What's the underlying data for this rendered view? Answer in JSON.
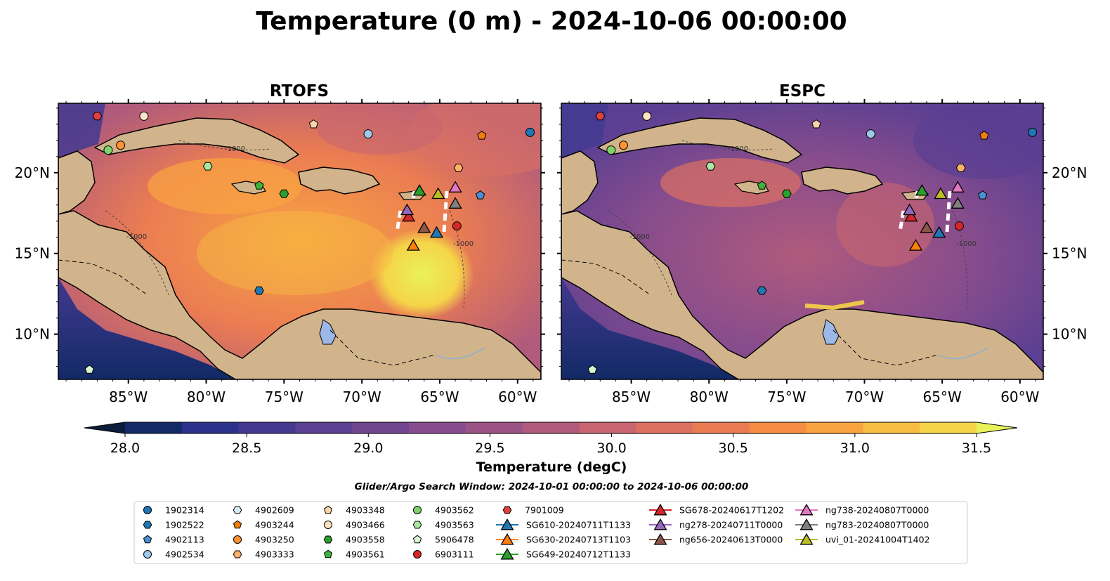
{
  "figure": {
    "title": "Temperature (0 m) - 2024-10-06 00:00:00"
  },
  "panels": [
    {
      "id": "rtofs",
      "title": "RTOFS"
    },
    {
      "id": "espc",
      "title": "ESPC"
    }
  ],
  "axes": {
    "lon_ticks": [
      "85°W",
      "80°W",
      "75°W",
      "70°W",
      "65°W",
      "60°W"
    ],
    "lat_ticks": [
      "20°N",
      "15°N",
      "10°N"
    ],
    "lon_range": [
      -89.5,
      -58.5
    ],
    "lat_range": [
      7.2,
      24.3
    ]
  },
  "colorbar": {
    "label": "Temperature (degC)",
    "ticks": [
      "28.0",
      "28.5",
      "29.0",
      "29.5",
      "30.0",
      "30.5",
      "31.0",
      "31.5"
    ],
    "range": [
      28.0,
      31.5
    ],
    "colors": [
      "#0d1c3a",
      "#122a66",
      "#2b318a",
      "#433990",
      "#5b3f92",
      "#704590",
      "#864c8d",
      "#9b5284",
      "#b05a7c",
      "#c86570",
      "#dc7162",
      "#ea7c53",
      "#f58e44",
      "#f9a441",
      "#f7bd42",
      "#f5d448",
      "#e9f25a"
    ]
  },
  "search_window": "Glider/Argo Search Window: 2024-10-01 00:00:00 to 2024-10-06 00:00:00",
  "legend": [
    {
      "label": "1902314",
      "marker": "circle",
      "color": "#1f77b4"
    },
    {
      "label": "1902522",
      "marker": "hexagon",
      "color": "#1f77b4"
    },
    {
      "label": "4902113",
      "marker": "pentagon",
      "color": "#4a8fd1"
    },
    {
      "label": "4902534",
      "marker": "circle",
      "color": "#9ec9ea"
    },
    {
      "label": "4902609",
      "marker": "hexagon",
      "color": "#d8ecf8"
    },
    {
      "label": "4903244",
      "marker": "pentagon",
      "color": "#f07d0e"
    },
    {
      "label": "4903250",
      "marker": "circle",
      "color": "#ff9333"
    },
    {
      "label": "4903333",
      "marker": "hexagon",
      "color": "#ffb06a"
    },
    {
      "label": "4903348",
      "marker": "pentagon",
      "color": "#fcd3a8"
    },
    {
      "label": "4903466",
      "marker": "circle",
      "color": "#fde2c4"
    },
    {
      "label": "4903558",
      "marker": "hexagon",
      "color": "#2ca02c"
    },
    {
      "label": "4903561",
      "marker": "pentagon",
      "color": "#3cb33c"
    },
    {
      "label": "4903562",
      "marker": "circle",
      "color": "#7ed36b"
    },
    {
      "label": "4903563",
      "marker": "hexagon",
      "color": "#a9e6a0"
    },
    {
      "label": "5906478",
      "marker": "pentagon",
      "color": "#d9f6d3"
    },
    {
      "label": "6903111",
      "marker": "circle",
      "color": "#d62728"
    },
    {
      "label": "7901009",
      "marker": "hexagon",
      "color": "#e0403f"
    },
    {
      "label": "SG610-20240711T1133",
      "marker": "triangle",
      "color": "#1f77b4",
      "line": true
    },
    {
      "label": "SG630-20240713T1103",
      "marker": "triangle",
      "color": "#ff7f0e",
      "line": true
    },
    {
      "label": "SG649-20240712T1133",
      "marker": "triangle",
      "color": "#2ca02c",
      "line": true
    },
    {
      "label": "SG678-20240617T1202",
      "marker": "triangle",
      "color": "#d62728",
      "line": true
    },
    {
      "label": "ng278-20240711T0000",
      "marker": "triangle",
      "color": "#9467bd",
      "line": true
    },
    {
      "label": "ng656-20240613T0000",
      "marker": "triangle",
      "color": "#8c564b",
      "line": true
    },
    {
      "label": "ng738-20240807T0000",
      "marker": "triangle",
      "color": "#e377c2",
      "line": true
    },
    {
      "label": "ng783-20240807T0000",
      "marker": "triangle",
      "color": "#7f7f7f",
      "line": true
    },
    {
      "label": "uvi_01-20241004T1402",
      "marker": "triangle",
      "color": "#bcbd22",
      "line": true
    }
  ],
  "observations": [
    {
      "id": "1902314",
      "lon": -59.2,
      "lat": 22.5
    },
    {
      "id": "1902522",
      "lon": -76.6,
      "lat": 12.7
    },
    {
      "id": "4902113",
      "lon": -62.4,
      "lat": 18.6
    },
    {
      "id": "4902534",
      "lon": -69.6,
      "lat": 22.4
    },
    {
      "id": "4903244",
      "lon": -62.3,
      "lat": 22.3
    },
    {
      "id": "4903250",
      "lon": -85.5,
      "lat": 21.7
    },
    {
      "id": "4903333",
      "lon": -63.8,
      "lat": 20.3
    },
    {
      "id": "4903348",
      "lon": -73.1,
      "lat": 23.0
    },
    {
      "id": "4903466",
      "lon": -84.0,
      "lat": 23.5
    },
    {
      "id": "4903558",
      "lon": -75.0,
      "lat": 18.7
    },
    {
      "id": "4903561",
      "lon": -76.6,
      "lat": 19.2
    },
    {
      "id": "4903562",
      "lon": -86.3,
      "lat": 21.4
    },
    {
      "id": "4903563",
      "lon": -79.9,
      "lat": 20.4
    },
    {
      "id": "5906478",
      "lon": -87.5,
      "lat": 7.8
    },
    {
      "id": "6903111",
      "lon": -63.9,
      "lat": 16.7
    },
    {
      "id": "7901009",
      "lon": -87.0,
      "lat": 23.5
    },
    {
      "id": "SG610-20240711T1133",
      "lon": -65.2,
      "lat": 16.3
    },
    {
      "id": "SG630-20240713T1103",
      "lon": -66.7,
      "lat": 15.5
    },
    {
      "id": "SG649-20240712T1133",
      "lon": -66.3,
      "lat": 18.9
    },
    {
      "id": "SG678-20240617T1202",
      "lon": -67.0,
      "lat": 17.3
    },
    {
      "id": "ng278-20240711T0000",
      "lon": -67.1,
      "lat": 17.7
    },
    {
      "id": "ng656-20240613T0000",
      "lon": -66.0,
      "lat": 16.6
    },
    {
      "id": "ng738-20240807T0000",
      "lon": -64.0,
      "lat": 19.1
    },
    {
      "id": "ng783-20240807T0000",
      "lon": -64.0,
      "lat": 18.1
    },
    {
      "id": "uvi_01-20241004T1402",
      "lon": -65.1,
      "lat": 18.7
    }
  ],
  "contour_label": "-1000"
}
